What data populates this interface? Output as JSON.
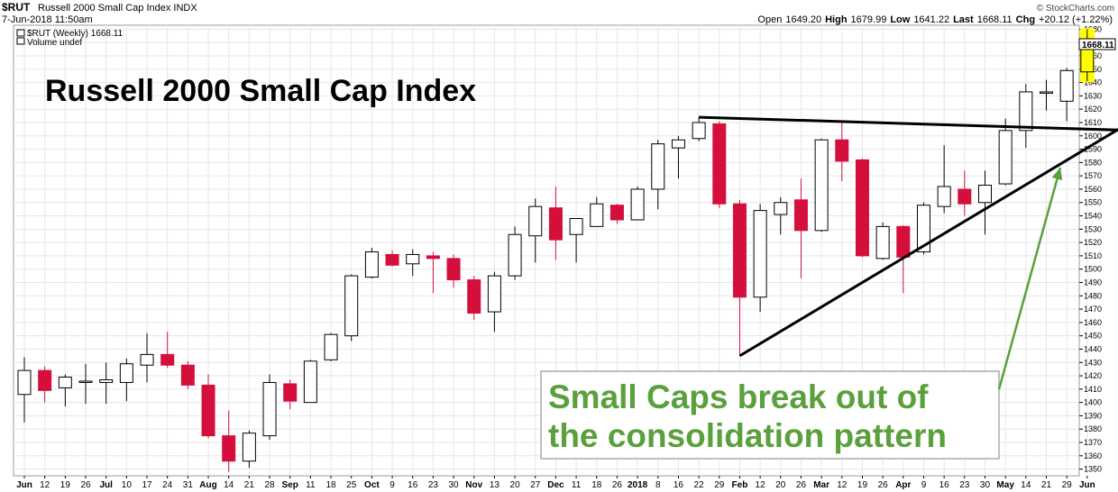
{
  "header": {
    "ticker": "$RUT",
    "index_name": "Russell 2000 Small Cap Index  INDX",
    "date_time": "7-Jun-2018 11:50am",
    "brand": "© StockCharts.com",
    "open_label": "Open",
    "open": "1649.20",
    "high_label": "High",
    "high": "1679.99",
    "low_label": "Low",
    "low": "1641.22",
    "last_label": "Last",
    "last": "1668.11",
    "chg_label": "Chg",
    "chg": "+20.12 (+1.22%)"
  },
  "legend": {
    "price": "$RUT (Weekly) 1668.11",
    "volume": "Volume undef"
  },
  "chart_title": "Russell 2000 Small Cap Index",
  "annotation": {
    "line1": "Small Caps break out of",
    "line2": "the consolidation pattern"
  },
  "last_price_label": "1668.11",
  "colors": {
    "up_fill": "#ffffff",
    "down_fill": "#d40f3c",
    "candle_stroke": "#000000",
    "highlight": "#ffff00",
    "annotation_green": "#5aa03c",
    "grid": "#e6e6e6"
  },
  "chart_data": {
    "type": "candlestick",
    "timeframe": "weekly",
    "ylim": [
      1345,
      1683
    ],
    "y_ticks": [
      1350,
      1360,
      1370,
      1380,
      1390,
      1400,
      1410,
      1420,
      1430,
      1440,
      1450,
      1460,
      1470,
      1480,
      1490,
      1500,
      1510,
      1520,
      1530,
      1540,
      1550,
      1560,
      1570,
      1580,
      1590,
      1600,
      1610,
      1620,
      1630,
      1640,
      1650,
      1660,
      1670,
      1680
    ],
    "x_labels": [
      {
        "i": 0,
        "t": "Jun",
        "b": true
      },
      {
        "i": 1,
        "t": "12"
      },
      {
        "i": 2,
        "t": "19"
      },
      {
        "i": 3,
        "t": "26"
      },
      {
        "i": 4,
        "t": "Jul",
        "b": true
      },
      {
        "i": 5,
        "t": "10"
      },
      {
        "i": 6,
        "t": "17"
      },
      {
        "i": 7,
        "t": "24"
      },
      {
        "i": 8,
        "t": "31"
      },
      {
        "i": 9,
        "t": "Aug",
        "b": true
      },
      {
        "i": 10,
        "t": "14"
      },
      {
        "i": 11,
        "t": "21"
      },
      {
        "i": 12,
        "t": "28"
      },
      {
        "i": 13,
        "t": "Sep",
        "b": true
      },
      {
        "i": 14,
        "t": "11"
      },
      {
        "i": 15,
        "t": "18"
      },
      {
        "i": 16,
        "t": "25"
      },
      {
        "i": 17,
        "t": "Oct",
        "b": true
      },
      {
        "i": 18,
        "t": "9"
      },
      {
        "i": 19,
        "t": "16"
      },
      {
        "i": 20,
        "t": "23"
      },
      {
        "i": 21,
        "t": "30"
      },
      {
        "i": 22,
        "t": "Nov",
        "b": true
      },
      {
        "i": 23,
        "t": "13"
      },
      {
        "i": 24,
        "t": "20"
      },
      {
        "i": 25,
        "t": "27"
      },
      {
        "i": 26,
        "t": "Dec",
        "b": true
      },
      {
        "i": 27,
        "t": "11"
      },
      {
        "i": 28,
        "t": "18"
      },
      {
        "i": 29,
        "t": "26"
      },
      {
        "i": 30,
        "t": "2018",
        "b": true
      },
      {
        "i": 31,
        "t": "8"
      },
      {
        "i": 32,
        "t": "16"
      },
      {
        "i": 33,
        "t": "22"
      },
      {
        "i": 34,
        "t": "29"
      },
      {
        "i": 35,
        "t": "Feb",
        "b": true
      },
      {
        "i": 36,
        "t": "12"
      },
      {
        "i": 37,
        "t": "20"
      },
      {
        "i": 38,
        "t": "26"
      },
      {
        "i": 39,
        "t": "Mar",
        "b": true
      },
      {
        "i": 40,
        "t": "12"
      },
      {
        "i": 41,
        "t": "19"
      },
      {
        "i": 42,
        "t": "26"
      },
      {
        "i": 43,
        "t": "Apr",
        "b": true
      },
      {
        "i": 44,
        "t": "9"
      },
      {
        "i": 45,
        "t": "16"
      },
      {
        "i": 46,
        "t": "23"
      },
      {
        "i": 47,
        "t": "30"
      },
      {
        "i": 48,
        "t": "May",
        "b": true
      },
      {
        "i": 49,
        "t": "14"
      },
      {
        "i": 50,
        "t": "21"
      },
      {
        "i": 51,
        "t": "29"
      },
      {
        "i": 52,
        "t": "Jun",
        "b": true
      }
    ],
    "candles": [
      {
        "o": 1406,
        "h": 1434,
        "l": 1385,
        "c": 1424
      },
      {
        "o": 1424,
        "h": 1427,
        "l": 1400,
        "c": 1409
      },
      {
        "o": 1411,
        "h": 1421,
        "l": 1397,
        "c": 1419
      },
      {
        "o": 1415,
        "h": 1429,
        "l": 1399,
        "c": 1416
      },
      {
        "o": 1415,
        "h": 1430,
        "l": 1399,
        "c": 1417
      },
      {
        "o": 1415,
        "h": 1433,
        "l": 1401,
        "c": 1429
      },
      {
        "o": 1428,
        "h": 1452,
        "l": 1415,
        "c": 1436
      },
      {
        "o": 1436,
        "h": 1453,
        "l": 1426,
        "c": 1428
      },
      {
        "o": 1428,
        "h": 1431,
        "l": 1410,
        "c": 1413
      },
      {
        "o": 1413,
        "h": 1421,
        "l": 1373,
        "c": 1375
      },
      {
        "o": 1375,
        "h": 1394,
        "l": 1348,
        "c": 1356
      },
      {
        "o": 1356,
        "h": 1379,
        "l": 1351,
        "c": 1377
      },
      {
        "o": 1375,
        "h": 1421,
        "l": 1372,
        "c": 1415
      },
      {
        "o": 1414,
        "h": 1417,
        "l": 1395,
        "c": 1401
      },
      {
        "o": 1400,
        "h": 1432,
        "l": 1400,
        "c": 1431
      },
      {
        "o": 1432,
        "h": 1452,
        "l": 1431,
        "c": 1451
      },
      {
        "o": 1450,
        "h": 1496,
        "l": 1446,
        "c": 1495
      },
      {
        "o": 1494,
        "h": 1516,
        "l": 1493,
        "c": 1513
      },
      {
        "o": 1511,
        "h": 1514,
        "l": 1502,
        "c": 1503
      },
      {
        "o": 1504,
        "h": 1515,
        "l": 1495,
        "c": 1511
      },
      {
        "o": 1510,
        "h": 1513,
        "l": 1482,
        "c": 1508
      },
      {
        "o": 1508,
        "h": 1511,
        "l": 1486,
        "c": 1492
      },
      {
        "o": 1492,
        "h": 1495,
        "l": 1462,
        "c": 1467
      },
      {
        "o": 1468,
        "h": 1498,
        "l": 1453,
        "c": 1495
      },
      {
        "o": 1495,
        "h": 1532,
        "l": 1492,
        "c": 1526
      },
      {
        "o": 1525,
        "h": 1553,
        "l": 1505,
        "c": 1547
      },
      {
        "o": 1546,
        "h": 1562,
        "l": 1507,
        "c": 1522
      },
      {
        "o": 1526,
        "h": 1538,
        "l": 1505,
        "c": 1538
      },
      {
        "o": 1532,
        "h": 1554,
        "l": 1532,
        "c": 1549
      },
      {
        "o": 1548,
        "h": 1549,
        "l": 1534,
        "c": 1537
      },
      {
        "o": 1537,
        "h": 1562,
        "l": 1537,
        "c": 1560
      },
      {
        "o": 1560,
        "h": 1597,
        "l": 1545,
        "c": 1594
      },
      {
        "o": 1591,
        "h": 1600,
        "l": 1568,
        "c": 1597
      },
      {
        "o": 1598,
        "h": 1614,
        "l": 1596,
        "c": 1610
      },
      {
        "o": 1609,
        "h": 1611,
        "l": 1546,
        "c": 1549
      },
      {
        "o": 1549,
        "h": 1552,
        "l": 1435,
        "c": 1479
      },
      {
        "o": 1479,
        "h": 1549,
        "l": 1468,
        "c": 1544
      },
      {
        "o": 1541,
        "h": 1554,
        "l": 1526,
        "c": 1550
      },
      {
        "o": 1552,
        "h": 1568,
        "l": 1493,
        "c": 1529
      },
      {
        "o": 1529,
        "h": 1598,
        "l": 1528,
        "c": 1597
      },
      {
        "o": 1597,
        "h": 1610,
        "l": 1566,
        "c": 1581
      },
      {
        "o": 1582,
        "h": 1583,
        "l": 1509,
        "c": 1510
      },
      {
        "o": 1508,
        "h": 1535,
        "l": 1507,
        "c": 1532
      },
      {
        "o": 1532,
        "h": 1533,
        "l": 1482,
        "c": 1509
      },
      {
        "o": 1513,
        "h": 1550,
        "l": 1511,
        "c": 1548
      },
      {
        "o": 1547,
        "h": 1593,
        "l": 1542,
        "c": 1562
      },
      {
        "o": 1560,
        "h": 1574,
        "l": 1540,
        "c": 1549
      },
      {
        "o": 1550,
        "h": 1574,
        "l": 1526,
        "c": 1563
      },
      {
        "o": 1564,
        "h": 1613,
        "l": 1563,
        "c": 1604
      },
      {
        "o": 1604,
        "h": 1639,
        "l": 1591,
        "c": 1633
      },
      {
        "o": 1632,
        "h": 1642,
        "l": 1619,
        "c": 1633
      },
      {
        "o": 1626,
        "h": 1651,
        "l": 1611,
        "c": 1649
      },
      {
        "o": 1648,
        "h": 1680,
        "l": 1641,
        "c": 1668
      }
    ],
    "trendlines": [
      {
        "i1": 33,
        "v1": 1614,
        "i2": 54.3,
        "v2": 1604
      },
      {
        "i1": 35,
        "v1": 1435,
        "i2": 54.3,
        "v2": 1612
      }
    ]
  }
}
